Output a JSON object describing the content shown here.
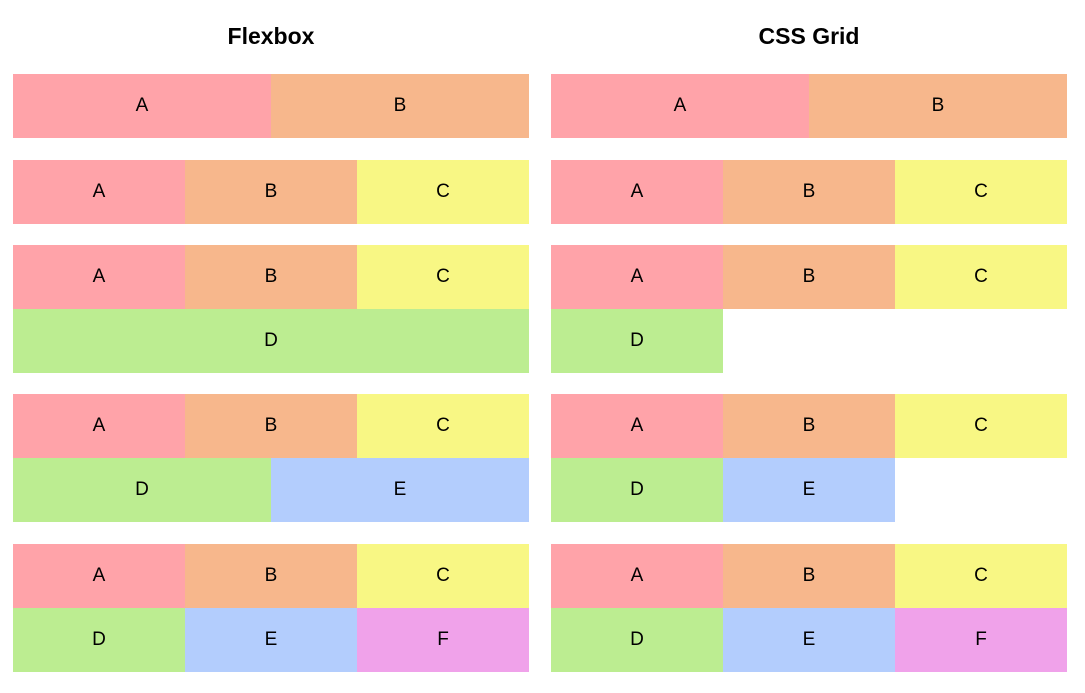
{
  "titles": {
    "flexbox": "Flexbox",
    "grid": "CSS Grid"
  },
  "labels": {
    "a": "A",
    "b": "B",
    "c": "C",
    "d": "D",
    "e": "E",
    "f": "F"
  },
  "colors": {
    "a": "#ffa3a9",
    "b": "#f7b78c",
    "c": "#f8f784",
    "d": "#bced91",
    "e": "#b3cdfd",
    "f": "#f0a2ea"
  },
  "examples": [
    {
      "items": [
        "A",
        "B"
      ]
    },
    {
      "items": [
        "A",
        "B",
        "C"
      ]
    },
    {
      "items": [
        "A",
        "B",
        "C",
        "D"
      ]
    },
    {
      "items": [
        "A",
        "B",
        "C",
        "D",
        "E"
      ]
    },
    {
      "items": [
        "A",
        "B",
        "C",
        "D",
        "E",
        "F"
      ]
    }
  ]
}
